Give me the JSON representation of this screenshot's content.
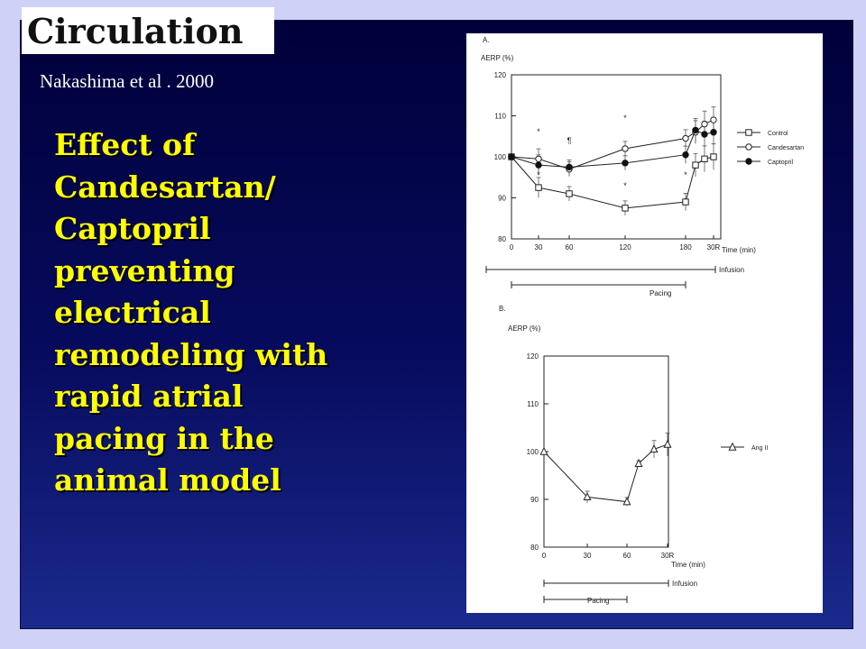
{
  "logo": {
    "text": "Circulation"
  },
  "citation": "Nakashima et al . 2000",
  "headline": [
    "Effect of",
    "Candesartan/",
    "Captopril",
    "preventing",
    "electrical",
    "remodeling with",
    "rapid atrial",
    "pacing in the",
    "animal model"
  ],
  "colors": {
    "headline": "#ffff00",
    "background": "#cfd2f7",
    "slide": "#0a0f60"
  },
  "chart_data": [
    {
      "type": "line",
      "panel_label": "A.",
      "ylabel": "AERP (%)",
      "xlabel": "Time (min)",
      "ylim": [
        80,
        120
      ],
      "yticks": [
        80,
        90,
        100,
        110,
        120
      ],
      "xtick_labels": [
        "0",
        "30",
        "60",
        "120",
        "180",
        "30R"
      ],
      "series": [
        {
          "name": "Control",
          "marker": "square-open",
          "points": [
            [
              0,
              100
            ],
            [
              30,
              92.5
            ],
            [
              60,
              91
            ],
            [
              120,
              87.5
            ],
            [
              180,
              89
            ],
            [
              190,
              98
            ],
            [
              200,
              99.5
            ],
            [
              210,
              100
            ]
          ]
        },
        {
          "name": "Candesartan",
          "marker": "circle-open",
          "points": [
            [
              0,
              100
            ],
            [
              30,
              99.5
            ],
            [
              60,
              97
            ],
            [
              120,
              102
            ],
            [
              180,
              104.5
            ],
            [
              190,
              106
            ],
            [
              200,
              108
            ],
            [
              210,
              109
            ]
          ]
        },
        {
          "name": "Captopril",
          "marker": "circle-filled",
          "points": [
            [
              0,
              100
            ],
            [
              30,
              98
            ],
            [
              60,
              97.5
            ],
            [
              120,
              98.5
            ],
            [
              180,
              100.5
            ],
            [
              190,
              106.5
            ],
            [
              200,
              105.5
            ],
            [
              210,
              106
            ]
          ]
        }
      ],
      "annotations": [
        "*",
        "¶",
        "*",
        "*",
        "*",
        "*",
        "*"
      ],
      "bars": [
        "Infusion",
        "Pacing"
      ]
    },
    {
      "type": "line",
      "panel_label": "B.",
      "ylabel": "AERP (%)",
      "xlabel": "Time (min)",
      "ylim": [
        80,
        120
      ],
      "yticks": [
        80,
        90,
        100,
        110,
        120
      ],
      "xtick_labels": [
        "0",
        "30",
        "60",
        "30R"
      ],
      "series": [
        {
          "name": "Ang II",
          "marker": "triangle-open",
          "points": [
            [
              0,
              100
            ],
            [
              30,
              90.5
            ],
            [
              60,
              89.5
            ],
            [
              70,
              97.5
            ],
            [
              80,
              100.5
            ],
            [
              90,
              101.5
            ]
          ]
        }
      ],
      "bars": [
        "Infusion",
        "Pacing"
      ]
    }
  ]
}
